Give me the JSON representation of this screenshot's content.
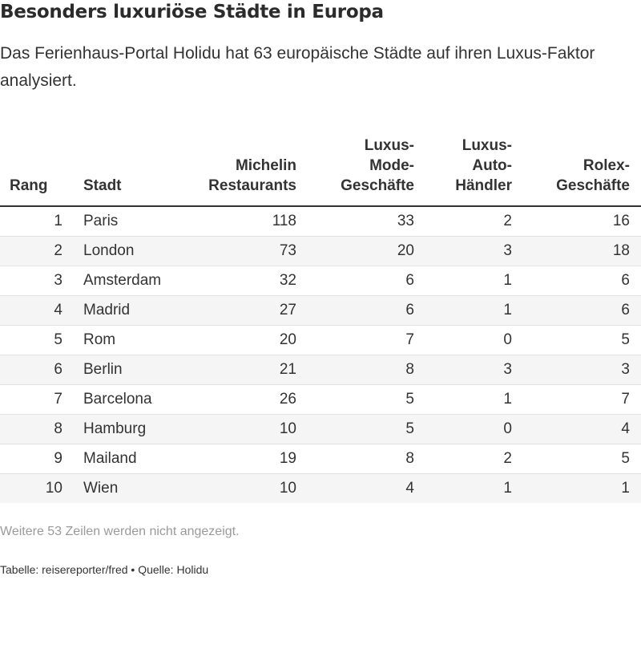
{
  "title": "Besonders luxuriöse Städte in Europa",
  "subtitle": "Das Ferienhaus-Portal Holidu hat 63 europäische Städte auf ihren Luxus-Faktor analysiert.",
  "chart_data": {
    "type": "table",
    "columns": [
      {
        "key": "rang",
        "lines": [
          "Rang"
        ]
      },
      {
        "key": "stadt",
        "lines": [
          "Stadt"
        ]
      },
      {
        "key": "michelin",
        "lines": [
          "Michelin",
          "Restaurants"
        ]
      },
      {
        "key": "mode",
        "lines": [
          "Luxus-",
          "Mode-",
          "Geschäfte"
        ]
      },
      {
        "key": "auto",
        "lines": [
          "Luxus-",
          "Auto-",
          "Händler"
        ]
      },
      {
        "key": "rolex",
        "lines": [
          "Rolex-",
          "Geschäfte"
        ]
      }
    ],
    "rows": [
      [
        1,
        "Paris",
        118,
        33,
        2,
        16
      ],
      [
        2,
        "London",
        73,
        20,
        3,
        18
      ],
      [
        3,
        "Amsterdam",
        32,
        6,
        1,
        6
      ],
      [
        4,
        "Madrid",
        27,
        6,
        1,
        6
      ],
      [
        5,
        "Rom",
        20,
        7,
        0,
        5
      ],
      [
        6,
        "Berlin",
        21,
        8,
        3,
        3
      ],
      [
        7,
        "Barcelona",
        26,
        5,
        1,
        7
      ],
      [
        8,
        "Hamburg",
        10,
        5,
        0,
        4
      ],
      [
        9,
        "Mailand",
        19,
        8,
        2,
        5
      ],
      [
        10,
        "Wien",
        10,
        4,
        1,
        1
      ]
    ]
  },
  "note": "Weitere 53 Zeilen werden nicht angezeigt.",
  "footer": "Tabelle: reisereporter/fred • Quelle: Holidu"
}
